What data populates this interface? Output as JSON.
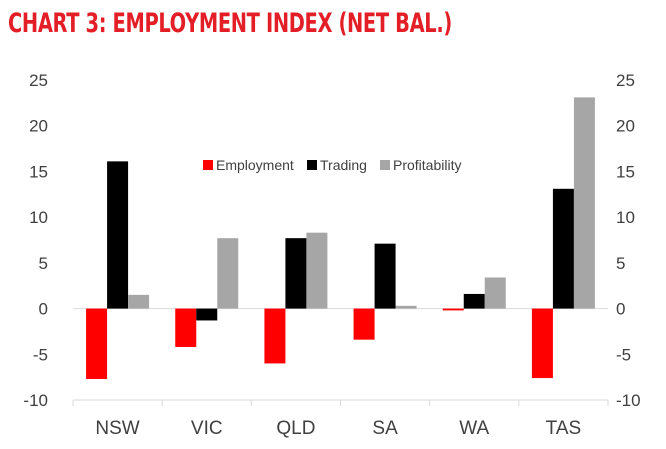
{
  "chart_data": {
    "type": "bar",
    "title": "CHART 3: EMPLOYMENT INDEX (NET BAL.)",
    "categories": [
      "NSW",
      "VIC",
      "QLD",
      "SA",
      "WA",
      "TAS"
    ],
    "series": [
      {
        "name": "Employment",
        "color": "#ff0000",
        "values": [
          -7.7,
          -4.2,
          -6.0,
          -3.4,
          -0.2,
          -7.6
        ]
      },
      {
        "name": "Trading",
        "color": "#000000",
        "values": [
          16.1,
          -1.3,
          7.7,
          7.1,
          1.6,
          13.1
        ]
      },
      {
        "name": "Profitability",
        "color": "#a6a6a6",
        "values": [
          1.5,
          7.7,
          8.3,
          0.3,
          3.4,
          23.1
        ]
      }
    ],
    "ylim": [
      -10,
      25
    ],
    "yticks": [
      "-10",
      "-5",
      "0",
      "5",
      "10",
      "15",
      "20",
      "25"
    ],
    "xlabel": "",
    "ylabel": "",
    "grid": false,
    "legend_position": "top-center"
  }
}
